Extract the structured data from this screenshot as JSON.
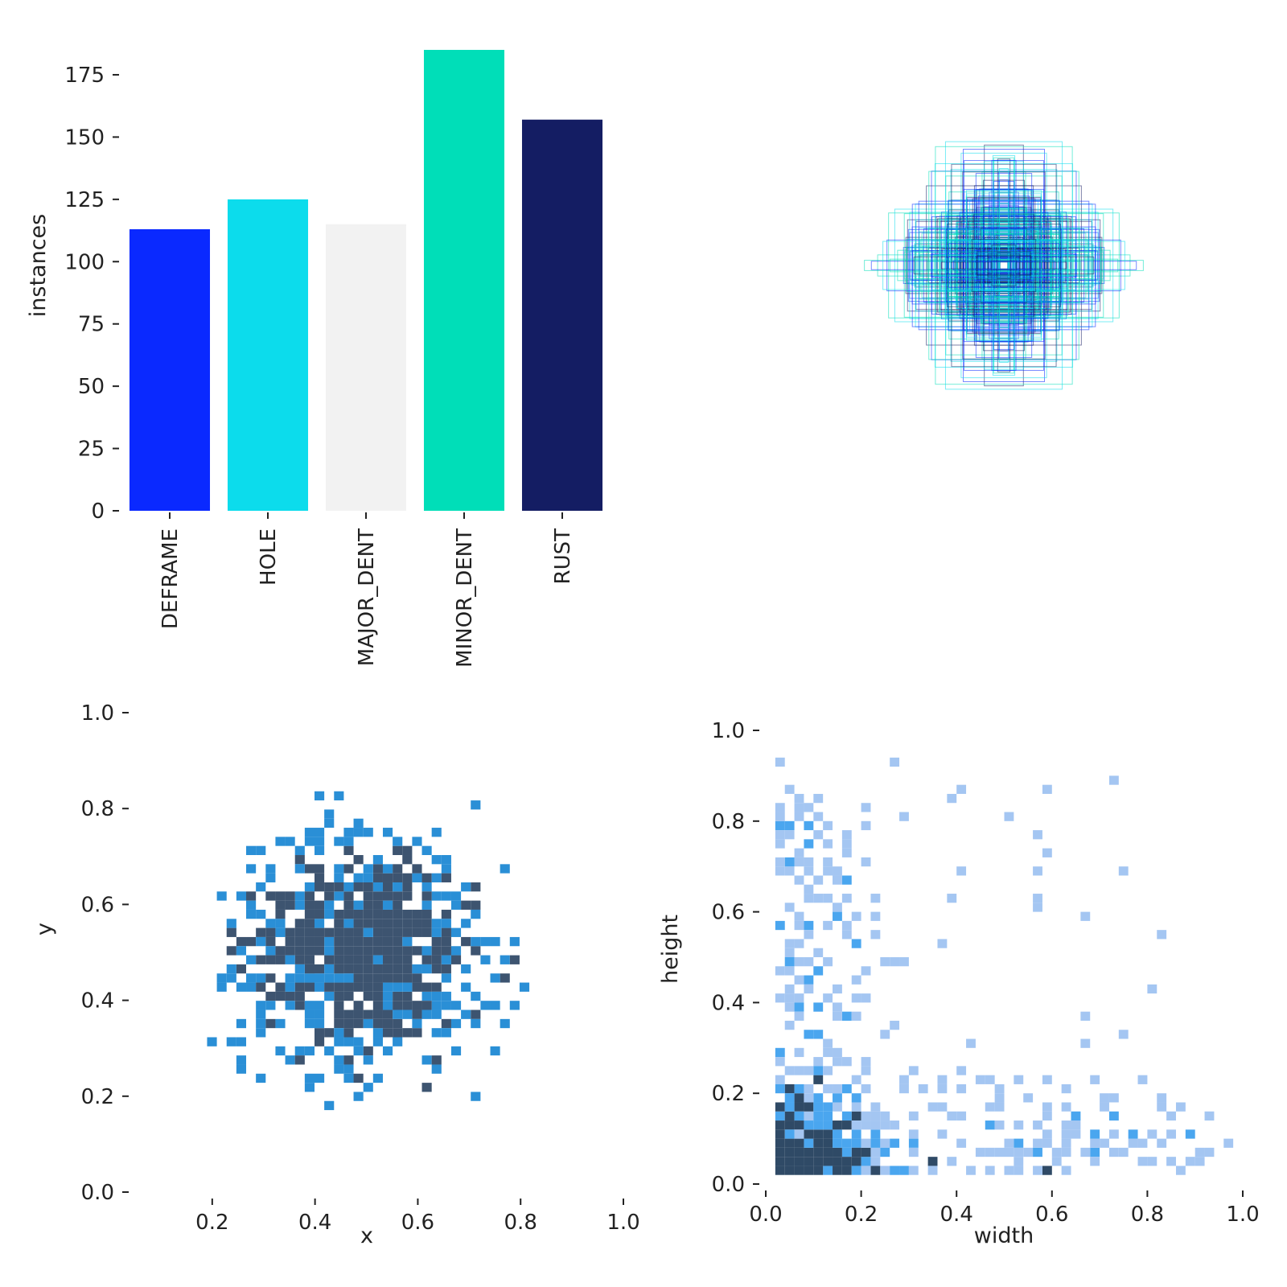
{
  "chart_data": [
    {
      "type": "bar",
      "ylabel": "instances",
      "categories": [
        "DEFRAME",
        "HOLE",
        "MAJOR_DENT",
        "MINOR_DENT",
        "RUST"
      ],
      "values": [
        113,
        125,
        115,
        185,
        157
      ],
      "colors": [
        "#0a29ff",
        "#0cdcec",
        "#f2f2f2",
        "#00deb8",
        "#141d63"
      ],
      "ylim": [
        0,
        185
      ],
      "yticks": [
        0,
        25,
        50,
        75,
        100,
        125,
        150,
        175
      ]
    },
    {
      "type": "boxes-overlay",
      "description_note": "labels overlay",
      "colors": [
        "#0a29ff",
        "#0cdcec",
        "#00deb8",
        "#141d63"
      ]
    },
    {
      "type": "heatmap",
      "xlabel": "x",
      "ylabel": "y",
      "xlim": [
        0.05,
        1.0
      ],
      "ylim": [
        0.0,
        1.0
      ],
      "xticks": [
        "0.2",
        "0.4",
        "0.6",
        "0.8",
        "1.0"
      ],
      "yticks": [
        "0.0",
        "0.2",
        "0.4",
        "0.6",
        "0.8",
        "1.0"
      ],
      "colors": {
        "low": "#2a8fd6",
        "high": "#3d5470"
      }
    },
    {
      "type": "heatmap",
      "xlabel": "width",
      "ylabel": "height",
      "xlim": [
        0.0,
        1.0
      ],
      "ylim": [
        0.0,
        1.0
      ],
      "xticks": [
        "0.0",
        "0.2",
        "0.4",
        "0.6",
        "0.8",
        "1.0"
      ],
      "yticks": [
        "0.0",
        "0.2",
        "0.4",
        "0.6",
        "0.8",
        "1.0"
      ],
      "colors": {
        "low": "#a4c6f2",
        "mid": "#4aa6ef",
        "high": "#2f4a66"
      }
    }
  ]
}
